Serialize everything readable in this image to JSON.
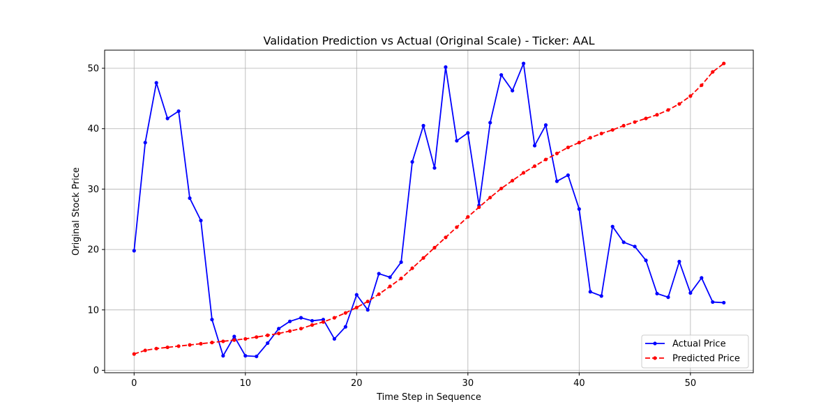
{
  "chart_data": {
    "type": "line",
    "title": "Validation Prediction vs Actual (Original Scale) - Ticker: AAL",
    "xlabel": "Time Step in Sequence",
    "ylabel": "Original Stock Price",
    "xlim": [
      -2.65,
      55.65
    ],
    "ylim": [
      -0.4,
      53.0
    ],
    "xticks": [
      0,
      10,
      20,
      30,
      40,
      50
    ],
    "yticks": [
      0,
      10,
      20,
      30,
      40,
      50
    ],
    "grid": true,
    "legend_position": "bottom-right",
    "x": [
      0,
      1,
      2,
      3,
      4,
      5,
      6,
      7,
      8,
      9,
      10,
      11,
      12,
      13,
      14,
      15,
      16,
      17,
      18,
      19,
      20,
      21,
      22,
      23,
      24,
      25,
      26,
      27,
      28,
      29,
      30,
      31,
      32,
      33,
      34,
      35,
      36,
      37,
      38,
      39,
      40,
      41,
      42,
      43,
      44,
      45,
      46,
      47,
      48,
      49,
      50,
      51,
      52,
      53
    ],
    "series": [
      {
        "name": "Actual Price",
        "color": "#0000ff",
        "linestyle": "solid",
        "marker": "circle",
        "values": [
          19.8,
          37.7,
          47.6,
          41.7,
          42.9,
          28.5,
          24.8,
          8.4,
          2.4,
          5.6,
          2.4,
          2.3,
          4.5,
          6.9,
          8.1,
          8.7,
          8.2,
          8.4,
          5.2,
          7.2,
          12.5,
          10.0,
          16.0,
          15.4,
          17.9,
          34.5,
          40.5,
          33.5,
          50.2,
          38.0,
          39.3,
          27.3,
          41.0,
          48.9,
          46.3,
          50.8,
          37.2,
          40.6,
          31.3,
          32.3,
          26.7,
          13.0,
          12.3,
          23.8,
          21.2,
          20.5,
          18.2,
          12.7,
          12.1,
          18.0,
          12.8,
          15.3,
          11.3,
          11.2
        ]
      },
      {
        "name": "Predicted Price",
        "color": "#ff0000",
        "linestyle": "dashed",
        "marker": "circle",
        "values": [
          2.7,
          3.3,
          3.6,
          3.8,
          4.0,
          4.2,
          4.4,
          4.6,
          4.8,
          5.0,
          5.2,
          5.5,
          5.8,
          6.1,
          6.5,
          6.9,
          7.5,
          8.0,
          8.7,
          9.5,
          10.4,
          11.4,
          12.6,
          13.9,
          15.2,
          16.9,
          18.6,
          20.3,
          22.0,
          23.7,
          25.4,
          27.0,
          28.6,
          30.1,
          31.4,
          32.7,
          33.8,
          34.9,
          35.9,
          36.9,
          37.7,
          38.5,
          39.2,
          39.8,
          40.5,
          41.1,
          41.7,
          42.3,
          43.1,
          44.1,
          45.4,
          47.2,
          49.4,
          50.8
        ]
      }
    ]
  }
}
